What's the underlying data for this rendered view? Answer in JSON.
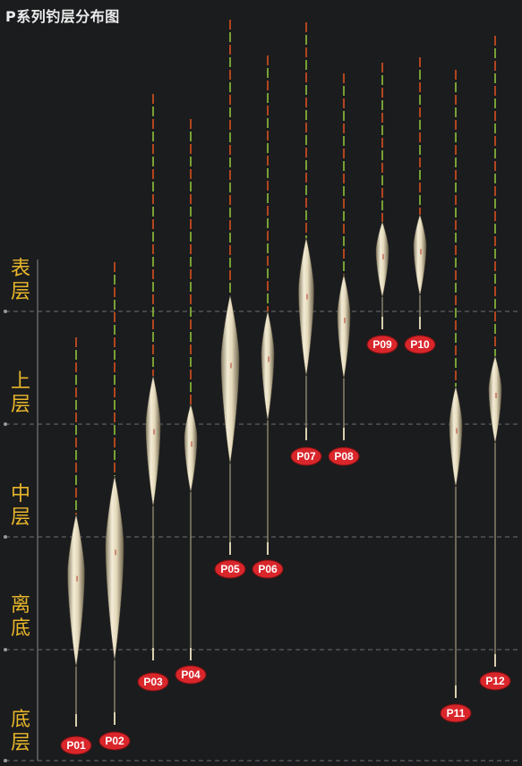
{
  "title": "P系列钓层分布图",
  "layers": [
    {
      "char1": "表",
      "char2": "层"
    },
    {
      "char1": "上",
      "char2": "层"
    },
    {
      "char1": "中",
      "char2": "层"
    },
    {
      "char1": "离",
      "char2": "底"
    },
    {
      "char1": "底",
      "char2": "层"
    }
  ],
  "floats": [
    {
      "label": "P01"
    },
    {
      "label": "P02"
    },
    {
      "label": "P03"
    },
    {
      "label": "P04"
    },
    {
      "label": "P05"
    },
    {
      "label": "P06"
    },
    {
      "label": "P07"
    },
    {
      "label": "P08"
    },
    {
      "label": "P09"
    },
    {
      "label": "P10"
    },
    {
      "label": "P11"
    },
    {
      "label": "P12"
    }
  ],
  "colors": {
    "background": "#1b1c1e",
    "layer_text": "#e8b62a",
    "tag": "#d9262b",
    "tip_red": "#d8501e",
    "tip_green": "#8fc23a",
    "body": "#e6dcc0"
  }
}
